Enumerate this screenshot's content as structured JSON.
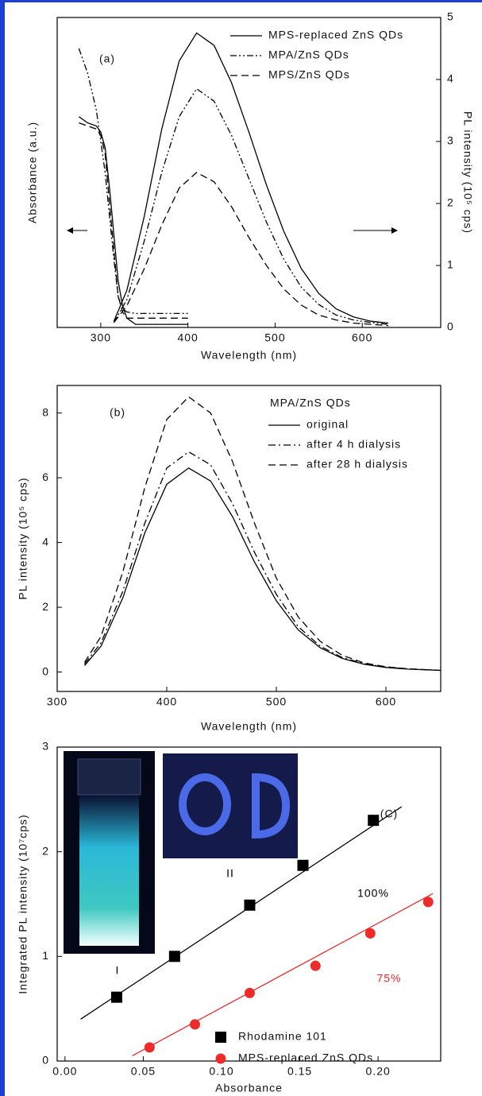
{
  "chart_data": [
    {
      "type": "line",
      "label": "(a)",
      "xlabel": "Wavelength (nm)",
      "ylabel": "Absorbance (a.u.)",
      "y2label": "PL intensity (10⁵ cps)",
      "xlim": [
        250,
        690
      ],
      "xticks": [
        300,
        400,
        500,
        600
      ],
      "ylim": [
        0,
        1
      ],
      "y2lim": [
        0,
        5
      ],
      "y2ticks": [
        0,
        1,
        2,
        3,
        4,
        5
      ],
      "series": [
        {
          "name": "MPS-replaced ZnS QDs",
          "color": "#000000",
          "dash": "solid",
          "axis": "y2",
          "x": [
            315,
            330,
            350,
            370,
            390,
            410,
            430,
            450,
            470,
            490,
            510,
            530,
            550,
            570,
            590,
            610,
            630
          ],
          "values": [
            0.1,
            0.6,
            1.8,
            3.2,
            4.3,
            4.75,
            4.55,
            3.95,
            3.15,
            2.3,
            1.55,
            0.95,
            0.55,
            0.3,
            0.17,
            0.1,
            0.07
          ]
        },
        {
          "name": "MPA/ZnS QDs",
          "color": "#000000",
          "dash": "dashdotdot",
          "axis": "y2",
          "x": [
            315,
            330,
            350,
            370,
            390,
            410,
            430,
            450,
            470,
            490,
            510,
            530,
            550,
            570,
            590,
            610,
            630
          ],
          "values": [
            0.08,
            0.45,
            1.4,
            2.5,
            3.4,
            3.85,
            3.65,
            3.1,
            2.4,
            1.7,
            1.1,
            0.65,
            0.37,
            0.2,
            0.12,
            0.08,
            0.05
          ]
        },
        {
          "name": "MPS/ZnS QDs",
          "color": "#000000",
          "dash": "dashed",
          "axis": "y2",
          "x": [
            315,
            330,
            350,
            370,
            390,
            410,
            430,
            450,
            470,
            490,
            510,
            530,
            550,
            570,
            590,
            610,
            630
          ],
          "values": [
            0.08,
            0.35,
            0.95,
            1.65,
            2.25,
            2.5,
            2.35,
            1.95,
            1.45,
            1.0,
            0.62,
            0.36,
            0.2,
            0.12,
            0.07,
            0.05,
            0.03
          ]
        },
        {
          "color": "#000000",
          "dash": "solid",
          "axis": "y",
          "x": [
            275,
            285,
            295,
            300,
            305,
            310,
            315,
            320,
            325,
            330,
            340,
            350,
            400
          ],
          "values": [
            0.68,
            0.66,
            0.65,
            0.63,
            0.58,
            0.45,
            0.3,
            0.15,
            0.07,
            0.03,
            0.01,
            0.01,
            0.01
          ]
        },
        {
          "color": "#000000",
          "dash": "dashdotdot",
          "axis": "y",
          "x": [
            275,
            285,
            295,
            300,
            305,
            310,
            315,
            320,
            325,
            330,
            340,
            350,
            400
          ],
          "values": [
            0.9,
            0.82,
            0.7,
            0.6,
            0.5,
            0.36,
            0.22,
            0.1,
            0.06,
            0.05,
            0.045,
            0.045,
            0.045
          ]
        },
        {
          "color": "#000000",
          "dash": "dashed",
          "axis": "y",
          "x": [
            275,
            285,
            295,
            300,
            305,
            310,
            315,
            320,
            325,
            330,
            340,
            350,
            400
          ],
          "values": [
            0.66,
            0.65,
            0.64,
            0.62,
            0.56,
            0.4,
            0.25,
            0.1,
            0.05,
            0.03,
            0.03,
            0.03,
            0.03
          ]
        }
      ]
    },
    {
      "type": "line",
      "label": "(b)",
      "xlabel": "Wavelength (nm)",
      "ylabel": "PL intensity (10⁵ cps)",
      "legend_title": "MPA/ZnS QDs",
      "xlim": [
        300,
        650
      ],
      "xticks": [
        300,
        400,
        500,
        600
      ],
      "ylim": [
        -0.6,
        8.85
      ],
      "yticks": [
        0,
        2,
        4,
        6,
        8
      ],
      "series": [
        {
          "name": "original",
          "color": "#000000",
          "dash": "solid",
          "x": [
            325,
            340,
            360,
            380,
            400,
            420,
            440,
            460,
            480,
            500,
            520,
            540,
            560,
            580,
            600,
            620,
            650
          ],
          "values": [
            0.2,
            0.8,
            2.3,
            4.3,
            5.8,
            6.3,
            5.9,
            4.8,
            3.4,
            2.2,
            1.3,
            0.75,
            0.42,
            0.24,
            0.14,
            0.09,
            0.05
          ]
        },
        {
          "name": "after 4 h dialysis",
          "color": "#000000",
          "dash": "dashdot",
          "x": [
            325,
            340,
            360,
            380,
            400,
            420,
            440,
            460,
            480,
            500,
            520,
            540,
            560,
            580,
            600,
            620,
            650
          ],
          "values": [
            0.25,
            0.9,
            2.5,
            4.6,
            6.3,
            6.8,
            6.4,
            5.2,
            3.7,
            2.4,
            1.4,
            0.8,
            0.45,
            0.26,
            0.15,
            0.1,
            0.05
          ]
        },
        {
          "name": "after 28 h dialysis",
          "color": "#000000",
          "dash": "dashed",
          "x": [
            325,
            340,
            360,
            380,
            400,
            420,
            440,
            460,
            480,
            500,
            520,
            540,
            560,
            580,
            600,
            620,
            650
          ],
          "values": [
            0.3,
            1.1,
            3.1,
            5.7,
            7.8,
            8.5,
            8.0,
            6.5,
            4.6,
            2.9,
            1.7,
            0.95,
            0.52,
            0.28,
            0.16,
            0.1,
            0.05
          ]
        }
      ]
    },
    {
      "type": "scatter",
      "label": "(C)",
      "xlabel": "Absorbance",
      "ylabel": "Integrated PL intensity (10⁷cps)",
      "xlim": [
        -0.005,
        0.24
      ],
      "xticks": [
        {
          "value": 0,
          "label": "0.00"
        },
        0.05,
        {
          "value": 0.1,
          "label": "0.10"
        },
        0.15,
        {
          "value": 0.2,
          "label": "0.20"
        }
      ],
      "ylim": [
        0,
        3
      ],
      "yticks": [
        0,
        1,
        2,
        3
      ],
      "annotations": [
        "100%",
        "75%",
        "I",
        "II"
      ],
      "series": [
        {
          "name": "Rhodamine 101",
          "color": "#000000",
          "marker": "square",
          "x": [
            0.033,
            0.07,
            0.118,
            0.152,
            0.197
          ],
          "values": [
            0.61,
            1.0,
            1.49,
            1.87,
            2.3
          ],
          "fit_x": [
            0.01,
            0.215
          ],
          "fit_values": [
            0.4,
            2.43
          ]
        },
        {
          "name": "MPS-replaced ZnS QDs",
          "color": "#ee2a2a",
          "marker": "circle",
          "x": [
            0.054,
            0.083,
            0.118,
            0.16,
            0.195,
            0.232
          ],
          "values": [
            0.13,
            0.35,
            0.65,
            0.91,
            1.22,
            1.52
          ],
          "fit_x": [
            0.043,
            0.235
          ],
          "fit_values": [
            0.05,
            1.6
          ]
        }
      ]
    }
  ]
}
